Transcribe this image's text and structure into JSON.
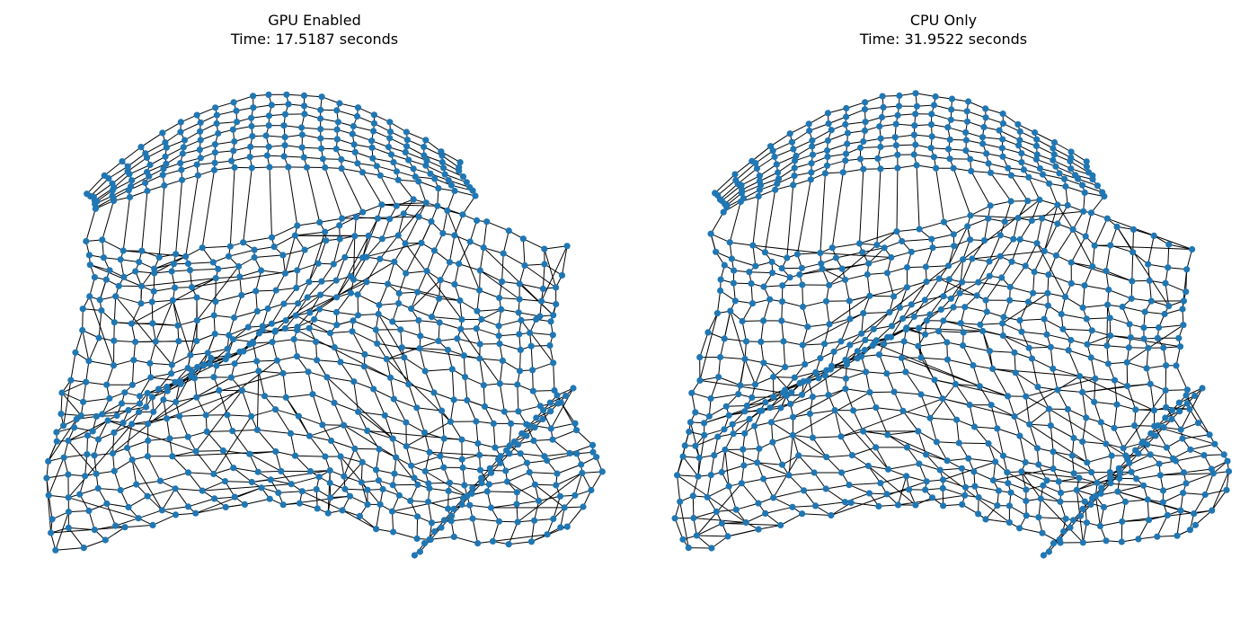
{
  "figure": {
    "panels": [
      {
        "title": "GPU Enabled",
        "subtitle": "Time: 17.5187 seconds",
        "seed": 17,
        "warp": {
          "wave": 1.0,
          "tail": 1.0
        }
      },
      {
        "title": "CPU Only",
        "subtitle": "Time: 31.9522 seconds",
        "seed": 31,
        "warp": {
          "wave": 1.02,
          "tail": 1.0
        }
      }
    ],
    "style": {
      "node_color": "#1f77b4",
      "edge_color": "#000000"
    }
  }
}
